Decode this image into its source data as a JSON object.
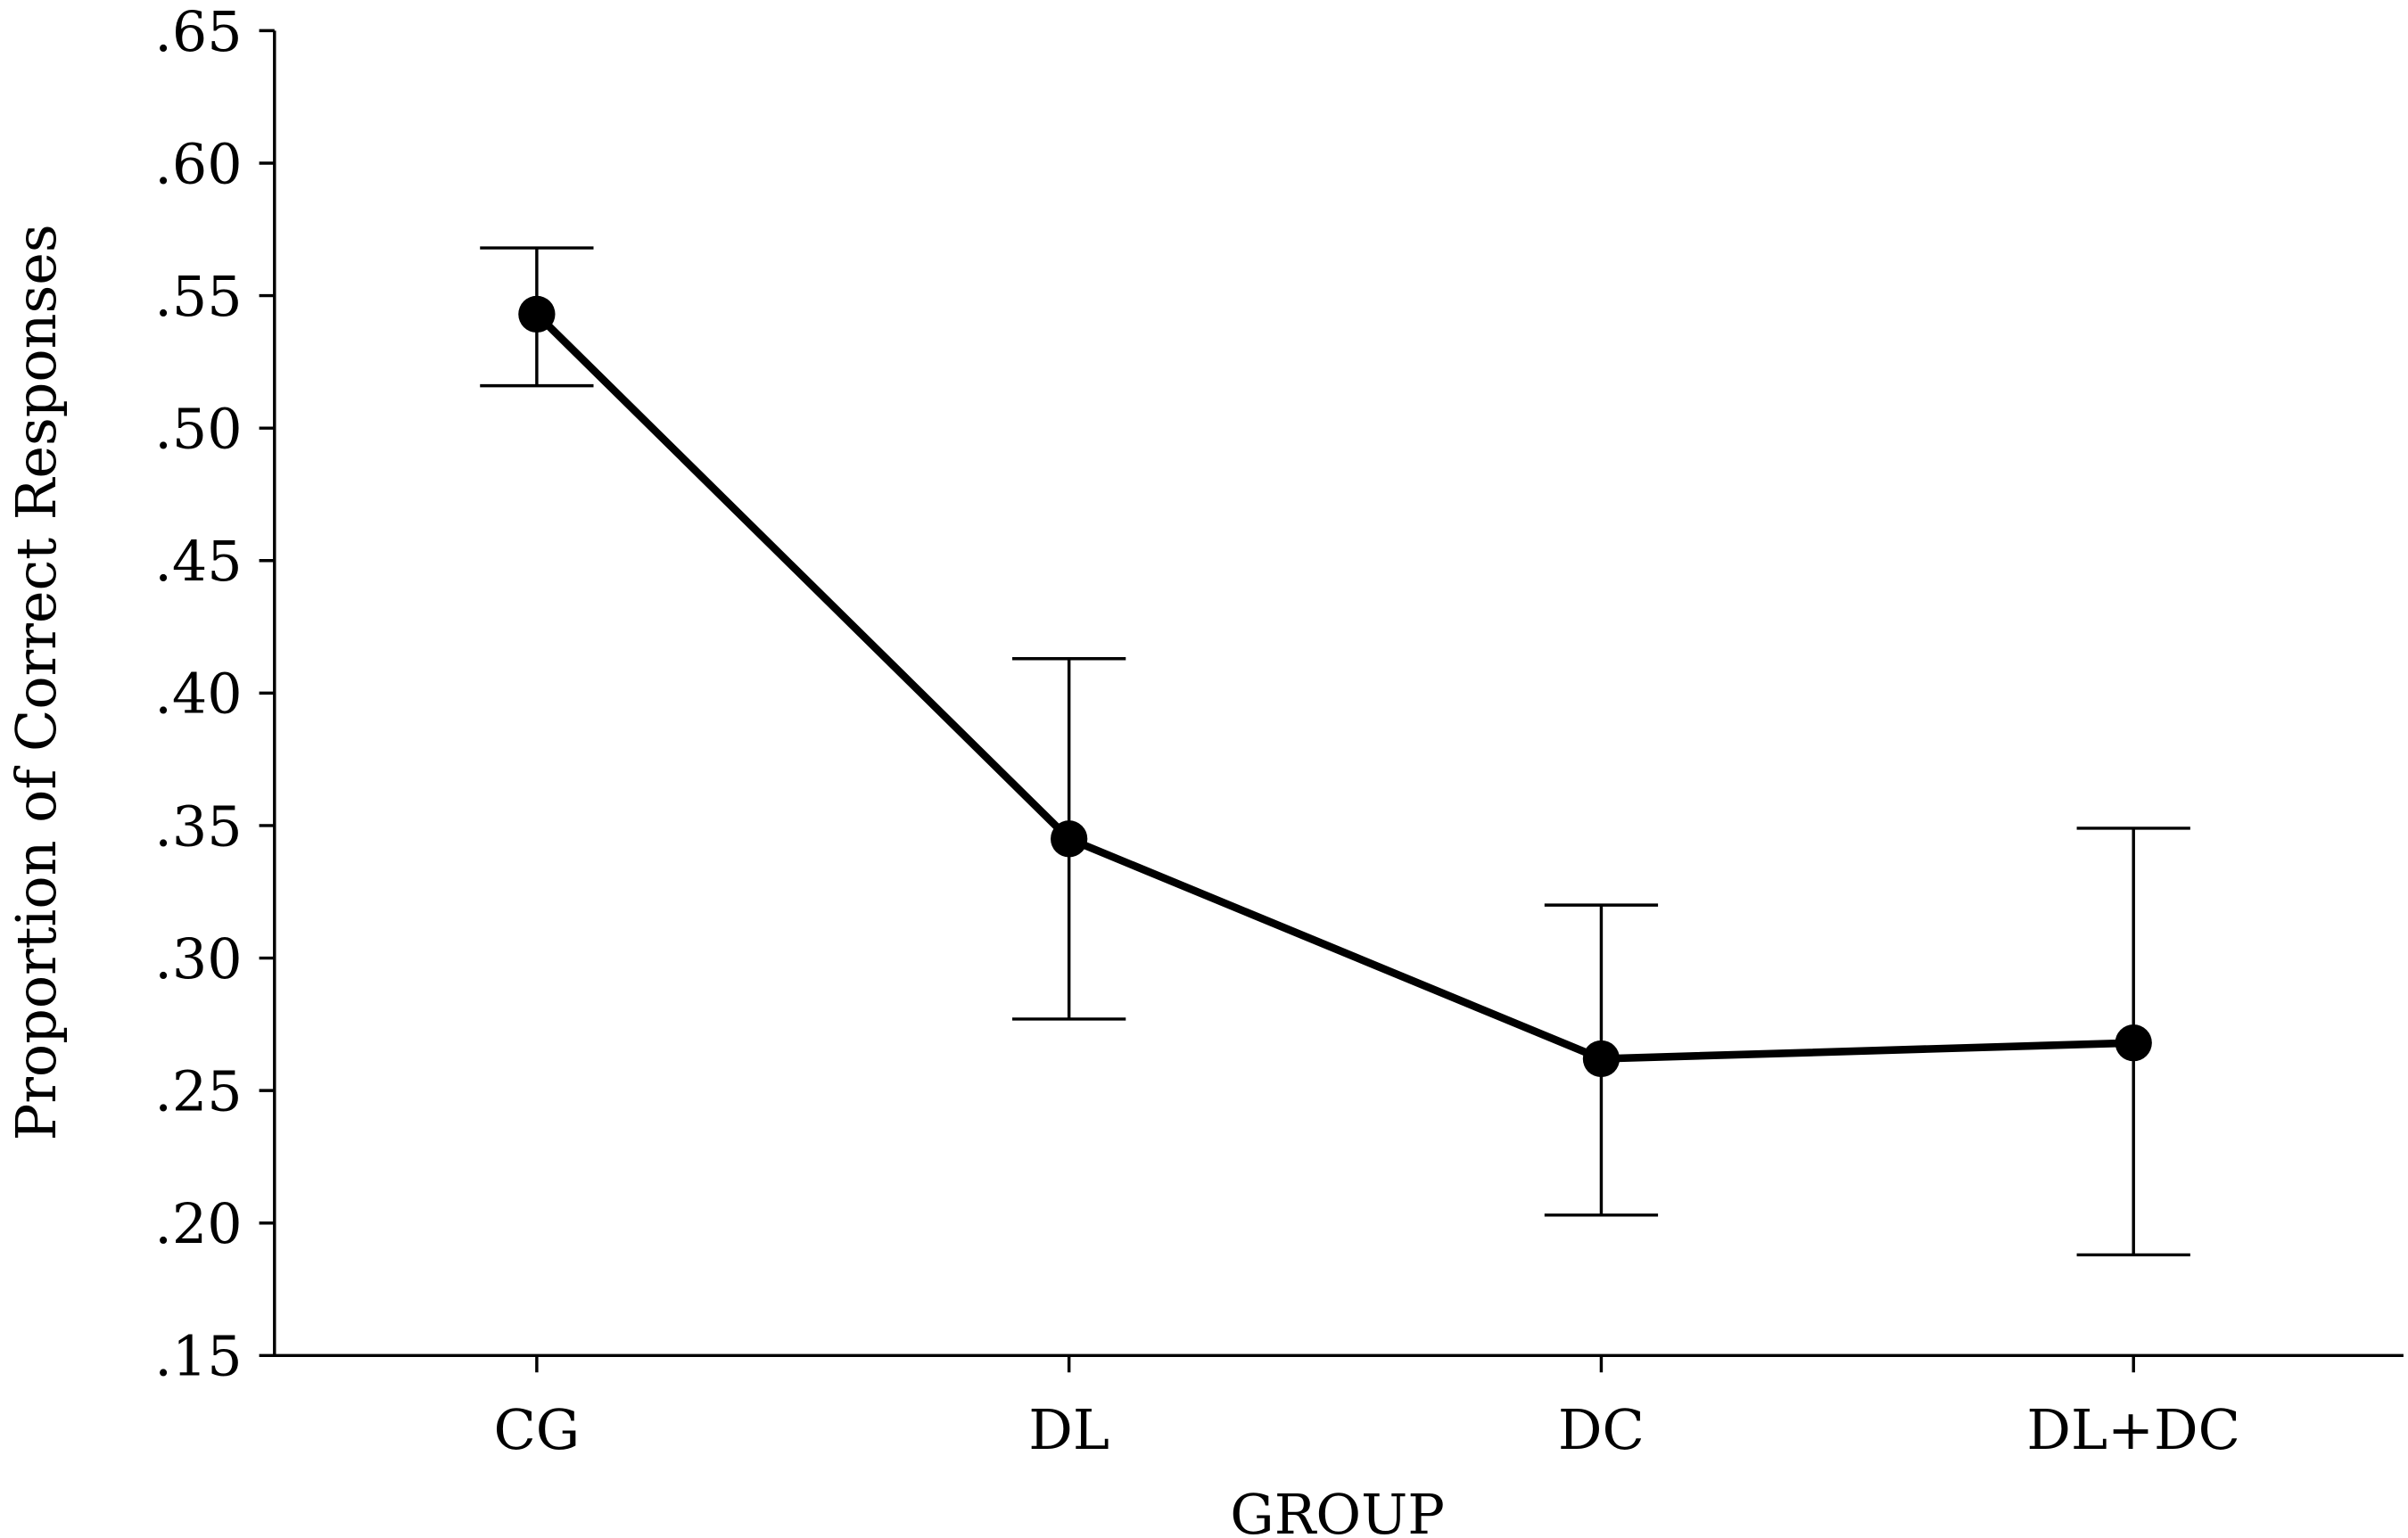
{
  "chart_data": {
    "type": "line",
    "title": "",
    "xlabel": "GROUP",
    "ylabel": "Proportion of Correct Responses",
    "categories": [
      "CG",
      "DL",
      "DC",
      "DL+DC"
    ],
    "series": [
      {
        "name": "Proportion of Correct Responses",
        "values": [
          0.543,
          0.345,
          0.262,
          0.268
        ],
        "error_low": [
          0.516,
          0.277,
          0.203,
          0.188
        ],
        "error_high": [
          0.568,
          0.413,
          0.32,
          0.349
        ],
        "color": "#000000"
      }
    ],
    "ylim": [
      0.15,
      0.65
    ],
    "yticks": [
      0.15,
      0.2,
      0.25,
      0.3,
      0.35,
      0.4,
      0.45,
      0.5,
      0.55,
      0.6,
      0.65
    ],
    "ytick_labels": [
      ".15",
      ".20",
      ".25",
      ".30",
      ".35",
      ".40",
      ".45",
      ".50",
      ".55",
      ".60",
      ".65"
    ],
    "grid": false,
    "legend": "none"
  }
}
